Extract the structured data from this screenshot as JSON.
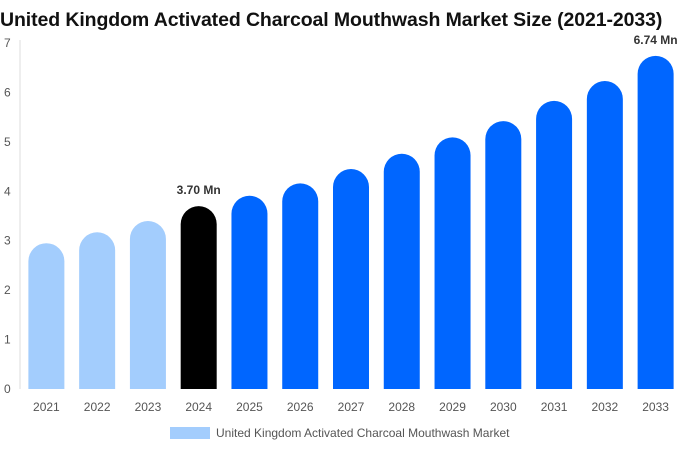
{
  "chart_data": {
    "type": "bar",
    "title": "United Kingdom Activated Charcoal Mouthwash Market Size (2021-2033)",
    "categories": [
      "2021",
      "2022",
      "2023",
      "2024",
      "2025",
      "2026",
      "2027",
      "2028",
      "2029",
      "2030",
      "2031",
      "2032",
      "2033"
    ],
    "series": [
      {
        "name": "United Kingdom Activated Charcoal Mouthwash Market",
        "values": [
          2.95,
          3.17,
          3.4,
          3.7,
          3.91,
          4.16,
          4.45,
          4.76,
          5.09,
          5.42,
          5.83,
          6.23,
          6.74
        ]
      }
    ],
    "bar_colors": [
      "#a3cdfd",
      "#a3cdfd",
      "#a3cdfd",
      "#000000",
      "#0066ff",
      "#0066ff",
      "#0066ff",
      "#0066ff",
      "#0066ff",
      "#0066ff",
      "#0066ff",
      "#0066ff",
      "#0066ff"
    ],
    "legend_color": "#a3cdfd",
    "yticks": [
      "0",
      "1",
      "2",
      "3",
      "4",
      "5",
      "6",
      "7"
    ],
    "ylim": [
      0,
      7
    ],
    "data_labels": [
      {
        "index": 3,
        "text": "3.70 Mn"
      },
      {
        "index": 12,
        "text": "6.74 Mn"
      }
    ],
    "legend_position": "bottom",
    "grid": false
  }
}
